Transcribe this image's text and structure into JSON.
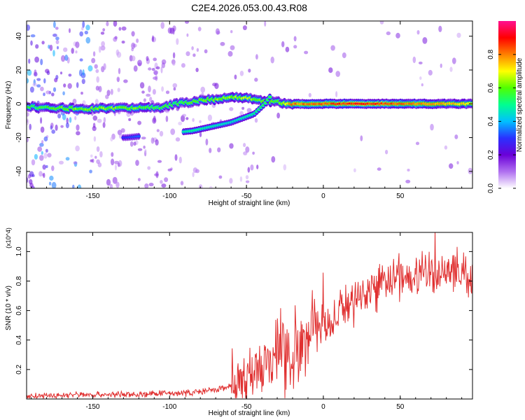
{
  "title": "C2E4.2026.053.00.43.R08",
  "chart_data": [
    {
      "type": "heatmap",
      "title": "C2E4.2026.053.00.43.R08",
      "xlabel": "Height of straight line (km)",
      "ylabel": "Frequency (Hz)",
      "xlim": [
        -193,
        97
      ],
      "ylim": [
        -50,
        49
      ],
      "xticks": [
        -150,
        -100,
        -50,
        0,
        50
      ],
      "yticks": [
        -40,
        -20,
        0,
        20,
        40
      ],
      "colorbar": {
        "label": "Normalized spectral amplitude",
        "range": [
          0,
          1
        ],
        "ticks": [
          0.0,
          0.2,
          0.4,
          0.6,
          0.8
        ],
        "colors": [
          "#ffffff",
          "#b070f0",
          "#6a00d8",
          "#2a30ff",
          "#00c0ff",
          "#00ff90",
          "#50ff00",
          "#ffff00",
          "#ff8000",
          "#ff0000",
          "#ff1090"
        ]
      },
      "band_points": [
        {
          "x": -185,
          "f": -2,
          "amp": 0.55
        },
        {
          "x": -170,
          "f": -2.5,
          "amp": 0.6
        },
        {
          "x": -155,
          "f": -3,
          "amp": 0.6
        },
        {
          "x": -140,
          "f": -2.5,
          "amp": 0.62
        },
        {
          "x": -120,
          "f": -2.5,
          "amp": 0.6
        },
        {
          "x": -105,
          "f": -2,
          "amp": 0.55
        },
        {
          "x": -95,
          "f": 0,
          "amp": 0.55
        },
        {
          "x": -80,
          "f": 2,
          "amp": 0.6
        },
        {
          "x": -65,
          "f": 3,
          "amp": 0.62
        },
        {
          "x": -50,
          "f": 4,
          "amp": 0.65
        },
        {
          "x": -40,
          "f": 2,
          "amp": 0.6
        },
        {
          "x": -30,
          "f": 1,
          "amp": 0.6
        },
        {
          "x": -20,
          "f": 0,
          "amp": 0.8
        },
        {
          "x": 0,
          "f": 0,
          "amp": 0.82
        },
        {
          "x": 20,
          "f": 0,
          "amp": 0.88
        },
        {
          "x": 40,
          "f": 0,
          "amp": 0.85
        },
        {
          "x": 60,
          "f": 0,
          "amp": 0.8
        },
        {
          "x": 80,
          "f": 0,
          "amp": 0.75
        },
        {
          "x": 95,
          "f": 0,
          "amp": 0.7
        }
      ],
      "branch_points": [
        {
          "x": -128,
          "f": -20,
          "amp": 0.3
        },
        {
          "x": -85,
          "f": -16,
          "amp": 0.5
        },
        {
          "x": -60,
          "f": -11,
          "amp": 0.45
        },
        {
          "x": -45,
          "f": -6,
          "amp": 0.5
        },
        {
          "x": -38,
          "f": 0,
          "amp": 0.55
        },
        {
          "x": -35,
          "f": 4,
          "amp": 0.55
        }
      ]
    },
    {
      "type": "line",
      "xlabel": "Height of straight line (km)",
      "ylabel": "SNR (10 * v/v)",
      "y_multiplier": "(x10^4)",
      "xlim": [
        -193,
        97
      ],
      "ylim": [
        0,
        1.13
      ],
      "xticks": [
        -150,
        -100,
        -50,
        0,
        50
      ],
      "yticks": [
        0.2,
        0.4,
        0.6,
        0.8,
        1.0
      ],
      "color": "#e03030",
      "x": [
        -193,
        -180,
        -160,
        -140,
        -120,
        -100,
        -90,
        -80,
        -70,
        -60,
        -50,
        -45,
        -40,
        -35,
        -30,
        -25,
        -20,
        -15,
        -10,
        -5,
        0,
        5,
        10,
        20,
        30,
        40,
        50,
        60,
        70,
        80,
        90,
        97
      ],
      "y": [
        0.02,
        0.02,
        0.03,
        0.03,
        0.03,
        0.04,
        0.04,
        0.05,
        0.06,
        0.09,
        0.13,
        0.18,
        0.22,
        0.3,
        0.33,
        0.27,
        0.32,
        0.35,
        0.43,
        0.55,
        0.6,
        0.47,
        0.59,
        0.68,
        0.74,
        0.8,
        0.83,
        0.85,
        0.84,
        0.86,
        0.86,
        0.85
      ]
    }
  ]
}
